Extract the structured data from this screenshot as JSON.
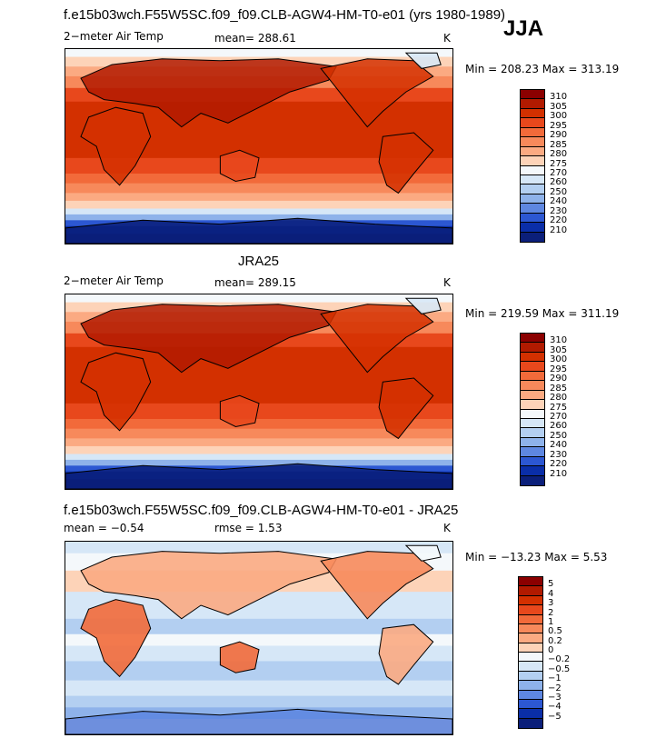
{
  "page": {
    "title": "f.e15b03wch.F55W5SC.f09_f09.CLB-AGW4-HM-T0-e01 (yrs 1980-1989)",
    "season": "JJA"
  },
  "panels": [
    {
      "heading": "",
      "left_label": "2−meter Air Temp",
      "center_label": "mean= 288.61",
      "units": "K",
      "minmax": "Min = 208.23 Max = 313.19",
      "palette": "model"
    },
    {
      "heading": "JRA25",
      "left_label": "2−meter Air Temp",
      "center_label": "mean= 289.15",
      "units": "K",
      "minmax": "Min = 219.59 Max = 311.19",
      "palette": "model"
    },
    {
      "heading": "f.e15b03wch.F55W5SC.f09_f09.CLB-AGW4-HM-T0-e01 - JRA25",
      "left_label": "mean =   −0.54",
      "center_label": "rmse =    1.53",
      "units": "K",
      "minmax": "Min = −13.23 Max =   5.53",
      "palette": "diff"
    }
  ],
  "chart_data": [
    {
      "type": "heatmap",
      "title": "2−meter Air Temp",
      "units": "K",
      "mean": 288.61,
      "min": 208.23,
      "max": 313.19,
      "colorbar_levels": [
        "310",
        "305",
        "300",
        "295",
        "290",
        "285",
        "280",
        "275",
        "270",
        "260",
        "250",
        "240",
        "230",
        "220",
        "210"
      ],
      "colorbar_colors": [
        "#8b0000",
        "#b11a00",
        "#d33000",
        "#e8481c",
        "#f26a3a",
        "#f7895b",
        "#fbaa82",
        "#fdd3b8",
        "#f4f8fb",
        "#d6e7f7",
        "#b3cff1",
        "#8eb2ea",
        "#5e87e1",
        "#2c57d2",
        "#0a2ea8",
        "#0b1f7a"
      ]
    },
    {
      "type": "heatmap",
      "title": "JRA25",
      "units": "K",
      "mean": 289.15,
      "min": 219.59,
      "max": 311.19,
      "colorbar_levels": [
        "310",
        "305",
        "300",
        "295",
        "290",
        "285",
        "280",
        "275",
        "270",
        "260",
        "250",
        "240",
        "230",
        "220",
        "210"
      ],
      "colorbar_colors": [
        "#8b0000",
        "#b11a00",
        "#d33000",
        "#e8481c",
        "#f26a3a",
        "#f7895b",
        "#fbaa82",
        "#fdd3b8",
        "#f4f8fb",
        "#d6e7f7",
        "#b3cff1",
        "#8eb2ea",
        "#5e87e1",
        "#2c57d2",
        "#0a2ea8",
        "#0b1f7a"
      ]
    },
    {
      "type": "heatmap",
      "title": "f.e15b03wch.F55W5SC.f09_f09.CLB-AGW4-HM-T0-e01 - JRA25",
      "units": "K",
      "mean": -0.54,
      "rmse": 1.53,
      "min": -13.23,
      "max": 5.53,
      "colorbar_levels": [
        "5",
        "4",
        "3",
        "2",
        "1",
        "0.5",
        "0.2",
        "0",
        "−0.2",
        "−0.5",
        "−1",
        "−2",
        "−3",
        "−4",
        "−5"
      ],
      "colorbar_colors": [
        "#8b0000",
        "#b11a00",
        "#d33000",
        "#e8481c",
        "#f26a3a",
        "#f7895b",
        "#fbaa82",
        "#fdd3b8",
        "#f4f8fb",
        "#d6e7f7",
        "#b3cff1",
        "#8eb2ea",
        "#5e87e1",
        "#2c57d2",
        "#0a2ea8",
        "#0b1f7a"
      ]
    }
  ]
}
